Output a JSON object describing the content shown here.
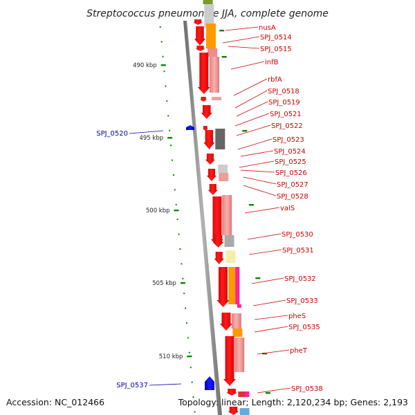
{
  "title": "Streptococcus pneumoniae JJA, complete genome",
  "footer": {
    "accession": "Accession: NC_012466",
    "summary": "Topology: linear; Length: 2,120,234 bp; Genes: 2,193"
  },
  "scale": {
    "tick_labels": [
      "490 kbp",
      "495 kbp",
      "500 kbp",
      "505 kbp",
      "510 kbp"
    ]
  },
  "colors": {
    "gene_forward": "#ff0000",
    "gene_reverse": "#0000ee",
    "label_forward": "#cc0000",
    "label_reverse": "#0000aa",
    "backbone": "#888888",
    "ticks": "#008800"
  },
  "forward_gene_labels": [
    "nusA",
    "SPJ_0514",
    "SPJ_0515",
    "infB",
    "rbfA",
    "SPJ_0518",
    "SPJ_0519",
    "SPJ_0521",
    "SPJ_0522",
    "SPJ_0523",
    "SPJ_0524",
    "SPJ_0525",
    "SPJ_0526",
    "SPJ_0527",
    "SPJ_0528",
    "valS",
    "SPJ_0530",
    "SPJ_0531",
    "SPJ_0532",
    "SPJ_0533",
    "pheS",
    "SPJ_0535",
    "pheT",
    "SPJ_0538"
  ],
  "reverse_gene_labels": [
    "SPJ_0520",
    "SPJ_0537"
  ]
}
